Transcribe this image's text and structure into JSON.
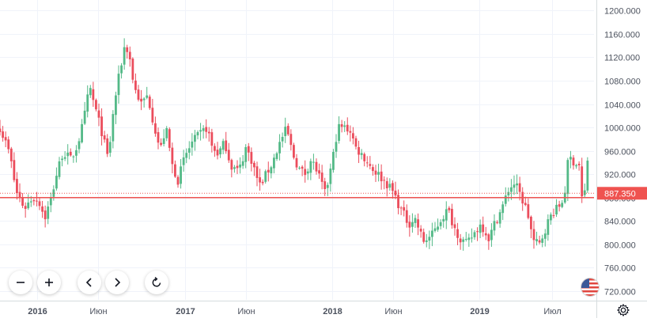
{
  "chart_data": {
    "type": "candlestick",
    "x_labels": [
      {
        "t": "2016-01-01",
        "label": "2016",
        "bold": true
      },
      {
        "t": "2016-06-01",
        "label": "Июн",
        "bold": false
      },
      {
        "t": "2017-01-01",
        "label": "2017",
        "bold": true
      },
      {
        "t": "2017-06-01",
        "label": "Июн",
        "bold": false
      },
      {
        "t": "2018-01-01",
        "label": "2018",
        "bold": true
      },
      {
        "t": "2018-06-01",
        "label": "Июн",
        "bold": false
      },
      {
        "t": "2019-01-01",
        "label": "2019",
        "bold": true
      },
      {
        "t": "2019-07-01",
        "label": "Июл",
        "bold": false
      }
    ],
    "y_ticks": [
      "1200.000",
      "1160.000",
      "1120.000",
      "1080.000",
      "1040.000",
      "1000.000",
      "960.000",
      "920.000",
      "880.000",
      "840.000",
      "800.000",
      "760.000",
      "720.000"
    ],
    "ylim": [
      705,
      1218
    ],
    "xlim": [
      "2015-10-01",
      "2019-10-12"
    ],
    "last_price": 887.35,
    "last_price_label": "887.350",
    "support_level": 880,
    "colors": {
      "up": "#53b987",
      "down": "#eb4d5c",
      "wick": "#777777",
      "grid": "#f0f3fa",
      "axis_text": "#4c525e",
      "price_label": "#ef5350"
    },
    "keypoints": [
      [
        "2015-10-01",
        1000
      ],
      [
        "2015-10-25",
        955
      ],
      [
        "2015-11-10",
        890
      ],
      [
        "2015-12-01",
        862
      ],
      [
        "2015-12-20",
        880
      ],
      [
        "2016-01-05",
        875
      ],
      [
        "2016-01-20",
        845
      ],
      [
        "2016-02-05",
        880
      ],
      [
        "2016-02-20",
        925
      ],
      [
        "2016-03-05",
        958
      ],
      [
        "2016-03-25",
        945
      ],
      [
        "2016-04-10",
        970
      ],
      [
        "2016-04-25",
        1010
      ],
      [
        "2016-05-10",
        1070
      ],
      [
        "2016-05-25",
        1030
      ],
      [
        "2016-06-10",
        990
      ],
      [
        "2016-06-25",
        945
      ],
      [
        "2016-07-10",
        1040
      ],
      [
        "2016-07-25",
        1100
      ],
      [
        "2016-08-05",
        1140
      ],
      [
        "2016-08-15",
        1130
      ],
      [
        "2016-08-28",
        1070
      ],
      [
        "2016-09-15",
        1040
      ],
      [
        "2016-10-01",
        1055
      ],
      [
        "2016-10-15",
        1010
      ],
      [
        "2016-11-01",
        960
      ],
      [
        "2016-11-15",
        1000
      ],
      [
        "2016-12-01",
        935
      ],
      [
        "2016-12-15",
        910
      ],
      [
        "2017-01-01",
        950
      ],
      [
        "2017-01-20",
        975
      ],
      [
        "2017-02-10",
        990
      ],
      [
        "2017-02-25",
        1000
      ],
      [
        "2017-03-10",
        965
      ],
      [
        "2017-03-25",
        955
      ],
      [
        "2017-04-10",
        975
      ],
      [
        "2017-04-25",
        935
      ],
      [
        "2017-05-15",
        925
      ],
      [
        "2017-06-01",
        965
      ],
      [
        "2017-06-15",
        945
      ],
      [
        "2017-07-05",
        900
      ],
      [
        "2017-07-20",
        918
      ],
      [
        "2017-08-05",
        938
      ],
      [
        "2017-08-25",
        975
      ],
      [
        "2017-09-10",
        998
      ],
      [
        "2017-09-25",
        955
      ],
      [
        "2017-10-10",
        930
      ],
      [
        "2017-10-25",
        920
      ],
      [
        "2017-11-10",
        945
      ],
      [
        "2017-11-25",
        925
      ],
      [
        "2017-12-15",
        885
      ],
      [
        "2018-01-01",
        940
      ],
      [
        "2018-01-15",
        1000
      ],
      [
        "2018-01-30",
        1000
      ],
      [
        "2018-02-15",
        995
      ],
      [
        "2018-03-01",
        965
      ],
      [
        "2018-03-20",
        950
      ],
      [
        "2018-04-10",
        930
      ],
      [
        "2018-04-25",
        920
      ],
      [
        "2018-05-15",
        905
      ],
      [
        "2018-06-01",
        890
      ],
      [
        "2018-06-20",
        860
      ],
      [
        "2018-07-10",
        835
      ],
      [
        "2018-07-25",
        845
      ],
      [
        "2018-08-15",
        805
      ],
      [
        "2018-09-05",
        815
      ],
      [
        "2018-09-25",
        840
      ],
      [
        "2018-10-15",
        860
      ],
      [
        "2018-10-30",
        830
      ],
      [
        "2018-11-15",
        810
      ],
      [
        "2018-12-01",
        800
      ],
      [
        "2018-12-20",
        820
      ],
      [
        "2019-01-05",
        835
      ],
      [
        "2019-01-25",
        810
      ],
      [
        "2019-02-10",
        840
      ],
      [
        "2019-02-25",
        860
      ],
      [
        "2019-03-15",
        895
      ],
      [
        "2019-03-30",
        905
      ],
      [
        "2019-04-15",
        880
      ],
      [
        "2019-04-30",
        855
      ],
      [
        "2019-05-15",
        805
      ],
      [
        "2019-05-30",
        800
      ],
      [
        "2019-06-15",
        830
      ],
      [
        "2019-07-01",
        855
      ],
      [
        "2019-07-15",
        862
      ],
      [
        "2019-07-30",
        880
      ],
      [
        "2019-08-10",
        950
      ],
      [
        "2019-08-25",
        940
      ],
      [
        "2019-09-05",
        935
      ],
      [
        "2019-09-12",
        880
      ],
      [
        "2019-09-20",
        890
      ],
      [
        "2019-09-26",
        945
      ],
      [
        "2019-10-01",
        887
      ]
    ]
  },
  "icons": {
    "zoom_out": "minus-icon",
    "zoom_in": "plus-icon",
    "scroll_left": "chevron-left-icon",
    "scroll_right": "chevron-right-icon",
    "reset": "reset-icon",
    "settings": "gear-icon",
    "flag": "us-flag-icon"
  }
}
